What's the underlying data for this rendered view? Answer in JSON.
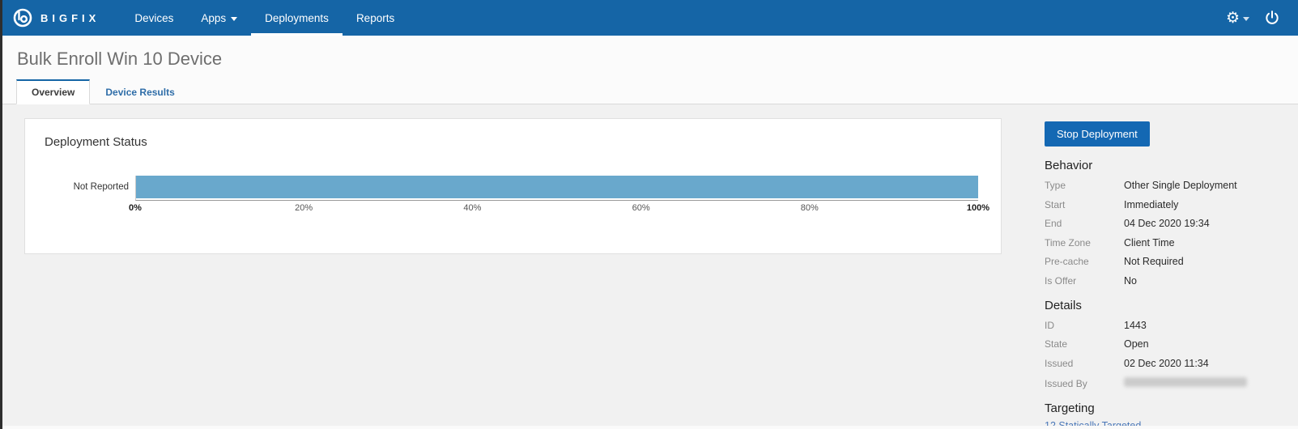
{
  "nav": {
    "brand": "BIGFIX",
    "items": [
      {
        "label": "Devices",
        "active": false
      },
      {
        "label": "Apps",
        "active": false,
        "has_caret": true
      },
      {
        "label": "Deployments",
        "active": true
      },
      {
        "label": "Reports",
        "active": false
      }
    ],
    "right_icons": [
      "gear-icon",
      "caret-down-icon",
      "power-icon"
    ]
  },
  "page": {
    "title": "Bulk Enroll Win 10 Device"
  },
  "tabs": [
    {
      "label": "Overview",
      "active": true
    },
    {
      "label": "Device Results",
      "active": false
    }
  ],
  "chart_data": {
    "type": "bar",
    "orientation": "horizontal",
    "title": "Deployment Status",
    "categories": [
      "Not Reported"
    ],
    "values": [
      100
    ],
    "xlabel": "",
    "ylabel": "",
    "xlim": [
      0,
      100
    ],
    "x_ticks": [
      "0%",
      "20%",
      "40%",
      "60%",
      "80%",
      "100%"
    ],
    "bar_color": "#69a8cc",
    "grid": false,
    "legend": false
  },
  "actions": {
    "stop_deployment": "Stop Deployment"
  },
  "behavior": {
    "heading": "Behavior",
    "rows": [
      {
        "label": "Type",
        "value": "Other Single Deployment"
      },
      {
        "label": "Start",
        "value": "Immediately"
      },
      {
        "label": "End",
        "value": "04 Dec 2020 19:34"
      },
      {
        "label": "Time Zone",
        "value": "Client Time"
      },
      {
        "label": "Pre-cache",
        "value": "Not Required"
      },
      {
        "label": "Is Offer",
        "value": "No"
      }
    ]
  },
  "details": {
    "heading": "Details",
    "rows": [
      {
        "label": "ID",
        "value": "1443"
      },
      {
        "label": "State",
        "value": "Open"
      },
      {
        "label": "Issued",
        "value": "02 Dec 2020 11:34"
      },
      {
        "label": "Issued By",
        "value": "",
        "redacted": true
      }
    ]
  },
  "targeting": {
    "heading": "Targeting",
    "link": "12 Statically Targeted"
  },
  "colors": {
    "nav_background": "#1565a6",
    "button_primary": "#1468b3",
    "bar_fill": "#69a8cc",
    "link_blue": "#4a77b8",
    "active_tab_accent": "#1565a6"
  }
}
